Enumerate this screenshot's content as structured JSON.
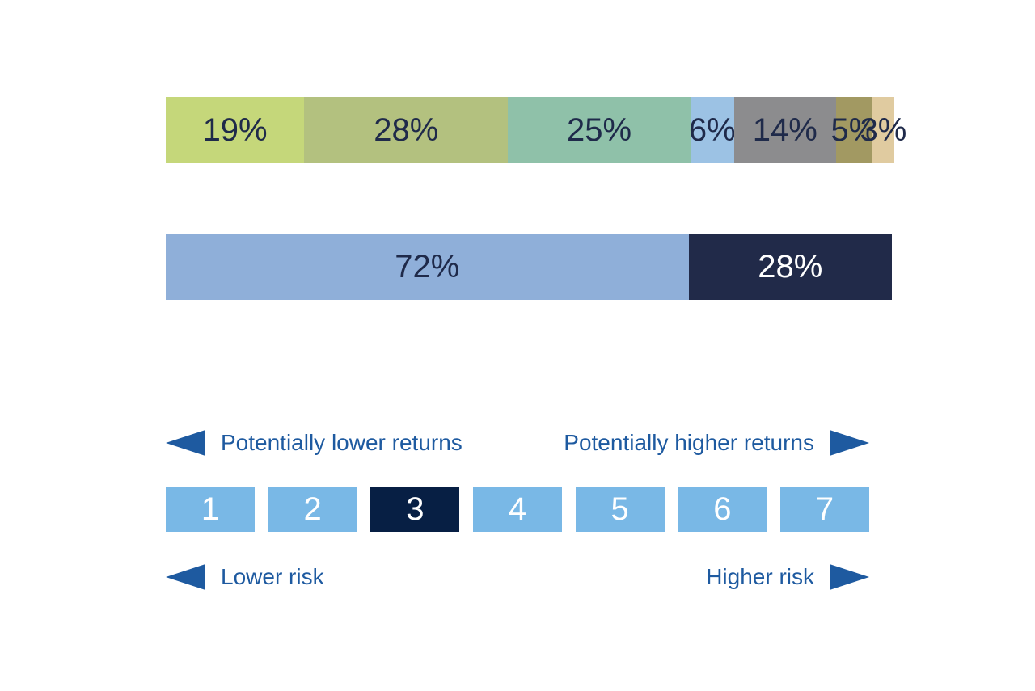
{
  "chart_data": [
    {
      "type": "bar",
      "stacked": true,
      "orientation": "horizontal",
      "unit": "%",
      "segments": [
        {
          "value": 19,
          "label": "19%",
          "color": "#c5d77a"
        },
        {
          "value": 28,
          "label": "28%",
          "color": "#b3c17f"
        },
        {
          "value": 25,
          "label": "25%",
          "color": "#8fc1a9"
        },
        {
          "value": 6,
          "label": "6%",
          "color": "#9cc2e4"
        },
        {
          "value": 14,
          "label": "14%",
          "color": "#8c8c8e"
        },
        {
          "value": 5,
          "label": "5%",
          "color": "#a29962"
        },
        {
          "value": 3,
          "label": "3%",
          "color": "#e0cba0"
        }
      ]
    },
    {
      "type": "bar",
      "stacked": true,
      "orientation": "horizontal",
      "unit": "%",
      "segments": [
        {
          "value": 72,
          "label": "72%",
          "color": "#8fafd9",
          "text_color": "#1f2a4a"
        },
        {
          "value": 28,
          "label": "28%",
          "color": "#212a49",
          "text_color": "#ffffff"
        }
      ]
    }
  ],
  "risk_indicator": {
    "returns_low_label": "Potentially lower returns",
    "returns_high_label": "Potentially higher returns",
    "risk_low_label": "Lower risk",
    "risk_high_label": "Higher risk",
    "levels": [
      "1",
      "2",
      "3",
      "4",
      "5",
      "6",
      "7"
    ],
    "selected_level": "3",
    "arrow_color": "#1e5aa0",
    "box_color": "#79b8e6",
    "selected_box_color": "#071f44"
  }
}
